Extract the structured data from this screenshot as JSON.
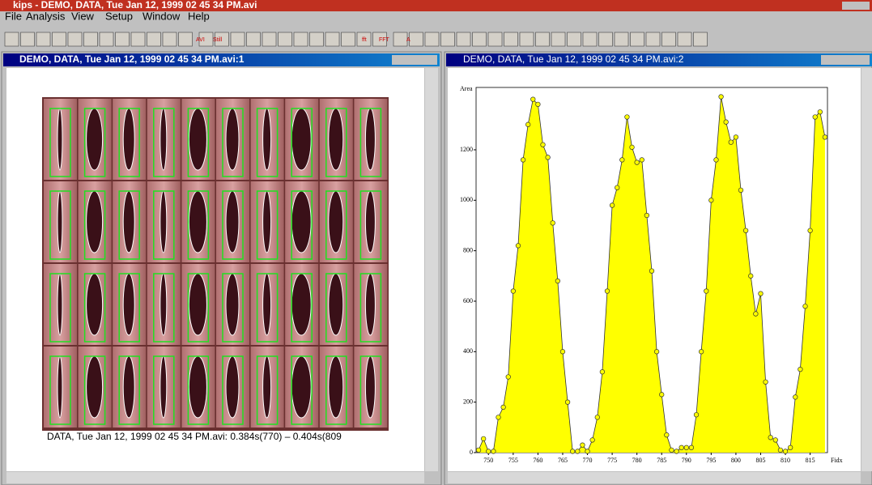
{
  "window_title": "kips - DEMO, DATA, Tue Jan 12, 1999 02 45 34 PM.avi",
  "menu": [
    "File",
    "Analysis",
    "View",
    "Setup",
    "Window",
    "Help"
  ],
  "toolbar": [
    "AVI",
    "Still",
    "fft",
    "FFT",
    "A"
  ],
  "left_window": {
    "title": "DEMO, DATA, Tue Jan 12, 1999 02 45 34 PM.avi:1",
    "caption": "DATA, Tue Jan 12, 1999 02 45 34 PM.avi:  0.384s(770) – 0.404s(809"
  },
  "right_window": {
    "title": "DEMO, DATA, Tue Jan 12, 1999 02 45 34 PM.avi:2"
  },
  "chart_data": {
    "type": "area",
    "ylabel": "Area",
    "xlabel": "Fidx",
    "color": "#ffff00",
    "line_color": "#333333",
    "x": [
      748,
      749,
      750,
      751,
      752,
      753,
      754,
      755,
      756,
      757,
      758,
      759,
      760,
      761,
      762,
      763,
      764,
      765,
      766,
      767,
      768,
      769,
      770,
      771,
      772,
      773,
      774,
      775,
      776,
      777,
      778,
      779,
      780,
      781,
      782,
      783,
      784,
      785,
      786,
      787,
      788,
      789,
      790,
      791,
      792,
      793,
      794,
      795,
      796,
      797,
      798,
      799,
      800,
      801,
      802,
      803,
      804,
      805,
      806,
      807,
      808,
      809,
      810,
      811,
      812,
      813,
      814,
      815,
      816,
      817,
      818
    ],
    "values": [
      10,
      55,
      5,
      5,
      140,
      180,
      300,
      640,
      820,
      1160,
      1300,
      1400,
      1380,
      1220,
      1170,
      910,
      680,
      400,
      200,
      5,
      5,
      30,
      5,
      50,
      140,
      320,
      640,
      980,
      1050,
      1160,
      1330,
      1210,
      1150,
      1160,
      940,
      720,
      400,
      230,
      70,
      10,
      5,
      20,
      20,
      20,
      150,
      400,
      640,
      1000,
      1160,
      1410,
      1310,
      1230,
      1250,
      1040,
      880,
      700,
      550,
      630,
      280,
      60,
      50,
      10,
      5,
      20,
      220,
      330,
      580,
      880,
      1330,
      1350,
      1250
    ],
    "xlim": [
      747.5,
      818.5
    ],
    "xticks": [
      750,
      755,
      760,
      765,
      770,
      775,
      780,
      785,
      790,
      795,
      800,
      805,
      810,
      815
    ],
    "ylim": [
      0,
      1447
    ],
    "yticks": [
      0,
      200,
      400,
      600,
      800,
      1000,
      1200
    ]
  }
}
